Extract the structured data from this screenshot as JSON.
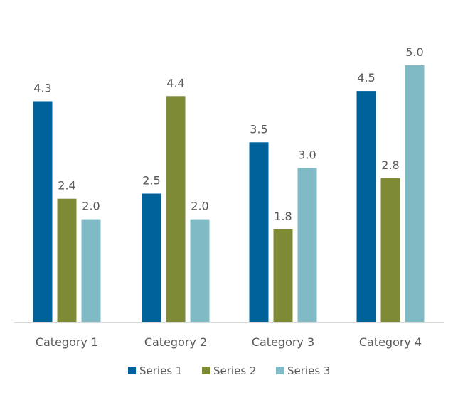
{
  "chart_data": {
    "type": "bar",
    "categories": [
      "Category 1",
      "Category 2",
      "Category 3",
      "Category 4"
    ],
    "series": [
      {
        "name": "Series 1",
        "color": "#00629b",
        "values": [
          4.3,
          2.5,
          3.5,
          4.5
        ]
      },
      {
        "name": "Series 2",
        "color": "#7f8a37",
        "values": [
          2.4,
          4.4,
          1.8,
          2.8
        ]
      },
      {
        "name": "Series 3",
        "color": "#7fbac5",
        "values": [
          2.0,
          2.0,
          3.0,
          5.0
        ]
      }
    ],
    "title": "",
    "xlabel": "",
    "ylabel": "",
    "ylim": [
      0,
      5.0
    ],
    "grid": false,
    "show_y_axis": false,
    "data_labels": true,
    "legend_position": "bottom",
    "colors": {
      "axis_line": "#d9d9d9",
      "text": "#595959"
    }
  }
}
